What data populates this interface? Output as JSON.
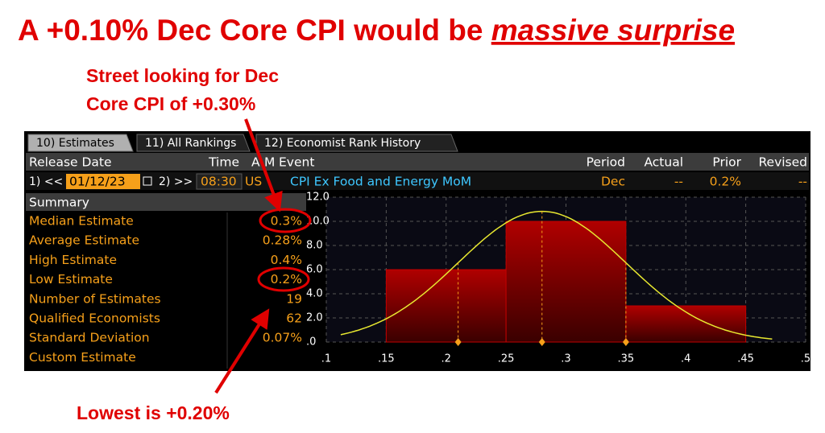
{
  "headline": {
    "lead": "A +0.10% Dec Core CPI would be ",
    "emphasis": "massive surprise"
  },
  "annotations": {
    "street": [
      "Street looking for Dec",
      "Core CPI of +0.30%"
    ],
    "lowest": "Lowest is +0.20%"
  },
  "tabs": [
    "10) Estimates",
    "11) All Rankings",
    "12) Economist Rank History"
  ],
  "header": [
    "Release Date",
    "Time",
    "A",
    "M",
    "Event",
    "Period",
    "Actual",
    "Prior",
    "Revised"
  ],
  "release_row": {
    "prev": "1) <<",
    "date": "01/12/23",
    "next": "2) >>",
    "time": "08:30",
    "country": "US",
    "event": "CPI Ex Food and Energy MoM",
    "period": "Dec",
    "actual": "--",
    "prior": "0.2%",
    "revised": "--"
  },
  "summary": {
    "title": "Summary",
    "rows": [
      {
        "label": "Median Estimate",
        "value": "0.3%"
      },
      {
        "label": "Average Estimate",
        "value": "0.28%"
      },
      {
        "label": "High Estimate",
        "value": "0.4%"
      },
      {
        "label": "Low Estimate",
        "value": "0.2%"
      },
      {
        "label": "Number of Estimates",
        "value": "19"
      },
      {
        "label": "Qualified Economists",
        "value": "62"
      },
      {
        "label": "Standard Deviation",
        "value": "0.07%"
      },
      {
        "label": "Custom Estimate",
        "value": null
      }
    ]
  },
  "histogram": {
    "bins": [
      0.15,
      0.25,
      0.35,
      0.45
    ],
    "counts": [
      6,
      10,
      3
    ],
    "xlim": [
      0.1,
      0.5
    ],
    "ylim": [
      0,
      12
    ],
    "xticks": [
      {
        "value": 0.1,
        "label": ".1"
      },
      {
        "value": 0.15,
        "label": ".15"
      },
      {
        "value": 0.2,
        "label": ".2"
      },
      {
        "value": 0.25,
        "label": ".25"
      },
      {
        "value": 0.3,
        "label": ".3"
      },
      {
        "value": 0.35,
        "label": ".35"
      },
      {
        "value": 0.4,
        "label": ".4"
      },
      {
        "value": 0.45,
        "label": ".45"
      },
      {
        "value": 0.5,
        "label": ".5"
      }
    ],
    "yticks": [
      {
        "value": 0,
        "label": ".0"
      },
      {
        "value": 2,
        "label": "2.0"
      },
      {
        "value": 4,
        "label": "4.0"
      },
      {
        "value": 6,
        "label": "6.0"
      },
      {
        "value": 8,
        "label": "8.0"
      },
      {
        "value": 10,
        "label": "10.0"
      },
      {
        "value": 12,
        "label": "12.0"
      }
    ]
  }
}
